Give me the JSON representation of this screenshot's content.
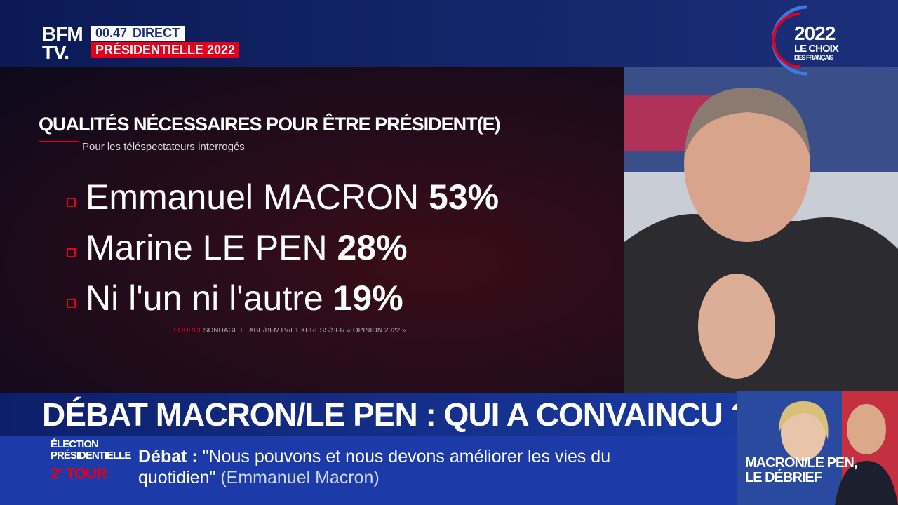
{
  "header": {
    "logo_top": "BFM",
    "logo_bottom": "TV.",
    "time": "00.47",
    "live": "DIRECT",
    "show": "PRÉSIDENTIELLE 2022"
  },
  "corner": {
    "year": "2022",
    "line1": "LE CHOIX",
    "line2": "DES FRANÇAIS"
  },
  "poll": {
    "title": "QUALITÉS NÉCESSAIRES POUR ÊTRE PRÉSIDENT(E)",
    "subtitle": "Pour les téléspectateurs interrogés",
    "items": [
      {
        "name": "Emmanuel MACRON",
        "value": "53%"
      },
      {
        "name": "Marine LE PEN",
        "value": "28%"
      },
      {
        "name": "Ni l'un ni l'autre",
        "value": "19%"
      }
    ],
    "source_label": "SOURCE",
    "source": "SONDAGE ELABE/BFMTV/L'EXPRESS/SFR « OPINION 2022 »"
  },
  "headline": "DÉBAT MACRON/LE PEN : QUI A CONVAINCU ?",
  "tag": {
    "line1": "ÉLECTION",
    "line2": "PRÉSIDENTIELLE",
    "tour_num": "2",
    "tour_sup": "e",
    "tour_text": "TOUR"
  },
  "ticker": {
    "label": "Débat :",
    "quote": "\"Nous pouvons et nous devons améliorer les vies du quotidien\"",
    "attribution": "(Emmanuel Macron)"
  },
  "thumbnail": {
    "line1": "MACRON/LE PEN,",
    "line2": "LE DÉBRIEF"
  }
}
